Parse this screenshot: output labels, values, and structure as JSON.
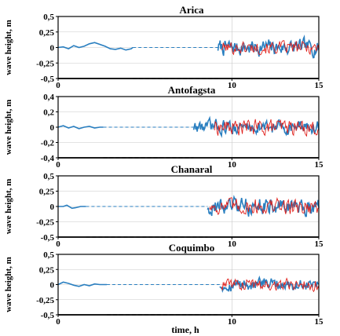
{
  "figure": {
    "xlabel": "time, h"
  },
  "colors": {
    "observed": "#2a7fc0",
    "modeled": "#e0201b",
    "grid": "#c8c8c8",
    "dashed": "#2a7fc0"
  },
  "chart_data": [
    {
      "type": "line",
      "title": "Arica",
      "ylabel": "wave height, m",
      "xlim": [
        0,
        15
      ],
      "ylim": [
        -0.5,
        0.5
      ],
      "yticks": [
        -0.5,
        -0.25,
        0,
        0.25,
        0.5
      ],
      "ytick_labels": [
        "-0,5",
        "-0,25",
        "0",
        "0,25",
        "0,5"
      ],
      "xticks": [
        0,
        10,
        15
      ],
      "xtick_labels": [
        "0",
        "10",
        "15"
      ],
      "grid": true,
      "gap": [
        4.3,
        9.2
      ],
      "obs_start": 0.0,
      "obs_amp": 0.1,
      "mod_start": 9.4,
      "mod_amp": 0.07,
      "series": [
        {
          "values": [
            [
              0.0,
              0.0
            ],
            [
              0.3,
              0.01
            ],
            [
              0.6,
              -0.02
            ],
            [
              0.9,
              0.03
            ],
            [
              1.2,
              0.0
            ],
            [
              1.5,
              0.02
            ],
            [
              1.8,
              0.06
            ],
            [
              2.1,
              0.08
            ],
            [
              2.4,
              0.05
            ],
            [
              2.7,
              0.02
            ],
            [
              3.0,
              -0.02
            ],
            [
              3.3,
              -0.03
            ],
            [
              3.6,
              -0.01
            ],
            [
              3.9,
              -0.04
            ],
            [
              4.2,
              -0.02
            ],
            [
              4.3,
              0.0
            ]
          ]
        }
      ]
    },
    {
      "type": "line",
      "title": "Antofagsta",
      "ylabel": "wave height, m",
      "xlim": [
        0,
        15
      ],
      "ylim": [
        -0.4,
        0.4
      ],
      "yticks": [
        -0.4,
        -0.2,
        0,
        0.2,
        0.4
      ],
      "ytick_labels": [
        "-0,4",
        "-0,2",
        "0",
        "0,2",
        "0,4"
      ],
      "xticks": [
        0,
        10,
        15
      ],
      "xtick_labels": [
        "0",
        "10",
        "15"
      ],
      "grid": true,
      "gap": [
        2.6,
        7.8
      ],
      "obs_start": 0.0,
      "obs_amp": 0.07,
      "mod_start": 9.0,
      "mod_amp": 0.07,
      "series": [
        {
          "values": [
            [
              0.0,
              0.0
            ],
            [
              0.3,
              0.02
            ],
            [
              0.6,
              -0.01
            ],
            [
              0.9,
              0.01
            ],
            [
              1.2,
              -0.02
            ],
            [
              1.5,
              0.0
            ],
            [
              1.8,
              0.01
            ],
            [
              2.1,
              -0.01
            ],
            [
              2.4,
              0.0
            ],
            [
              2.6,
              0.0
            ]
          ]
        }
      ]
    },
    {
      "type": "line",
      "title": "Chanaral",
      "ylabel": "wave height, m",
      "xlim": [
        0,
        15
      ],
      "ylim": [
        -0.5,
        0.5
      ],
      "yticks": [
        -0.5,
        -0.25,
        0,
        0.25,
        0.5
      ],
      "ytick_labels": [
        "-0,5",
        "-0,25",
        "0",
        "0,25",
        "0,5"
      ],
      "xticks": [
        0,
        10,
        15
      ],
      "xtick_labels": [
        "0",
        "10",
        "15"
      ],
      "grid": true,
      "gap": [
        1.6,
        8.6
      ],
      "obs_start": 8.6,
      "obs_amp": 0.11,
      "mod_start": 8.7,
      "mod_amp": 0.09,
      "series": [
        {
          "values": [
            [
              0.0,
              0.0
            ],
            [
              0.3,
              0.0
            ],
            [
              0.5,
              0.02
            ],
            [
              0.8,
              -0.03
            ],
            [
              1.0,
              -0.02
            ],
            [
              1.3,
              0.0
            ],
            [
              1.6,
              0.0
            ]
          ]
        }
      ]
    },
    {
      "type": "line",
      "title": "Coquimbo",
      "ylabel": "wave height, m",
      "xlim": [
        0,
        15
      ],
      "ylim": [
        -0.5,
        0.5
      ],
      "yticks": [
        -0.5,
        -0.25,
        0,
        0.25,
        0.5
      ],
      "ytick_labels": [
        "-0,5",
        "-0,25",
        "0",
        "0,25",
        "0,5"
      ],
      "xticks": [
        0,
        10,
        15
      ],
      "xtick_labels": [
        "0",
        "10",
        "15"
      ],
      "grid": true,
      "gap": [
        2.8,
        9.3
      ],
      "obs_start": 0.0,
      "obs_amp": 0.08,
      "mod_start": 9.4,
      "mod_amp": 0.07,
      "series": [
        {
          "values": [
            [
              0.0,
              0.0
            ],
            [
              0.3,
              0.04
            ],
            [
              0.6,
              0.02
            ],
            [
              0.9,
              -0.01
            ],
            [
              1.2,
              -0.03
            ],
            [
              1.5,
              0.0
            ],
            [
              1.8,
              -0.02
            ],
            [
              2.1,
              0.01
            ],
            [
              2.4,
              0.0
            ],
            [
              2.8,
              0.0
            ]
          ]
        }
      ]
    }
  ]
}
